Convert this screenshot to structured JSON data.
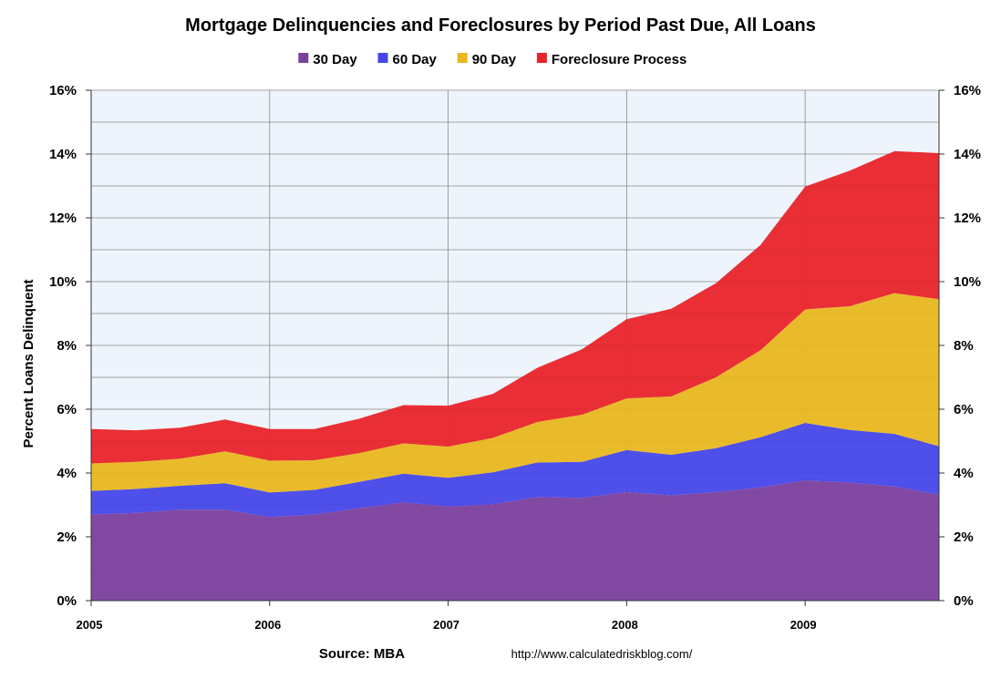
{
  "chart_data": {
    "type": "area",
    "stacked": true,
    "title": "Mortgage Delinquencies and Foreclosures by Period Past Due, All Loans",
    "ylabel": "Percent Loans Delinquent",
    "xlabel": "",
    "ylim": [
      0,
      16
    ],
    "yticks": [
      "0%",
      "2%",
      "4%",
      "6%",
      "8%",
      "10%",
      "12%",
      "14%",
      "16%"
    ],
    "ytick_values": [
      0,
      2,
      4,
      6,
      8,
      10,
      12,
      14,
      16
    ],
    "secondary_y_axis": true,
    "xlim": [
      2005,
      2009.75
    ],
    "xticks": [
      "2005",
      "2006",
      "2007",
      "2008",
      "2009"
    ],
    "xtick_values": [
      2005,
      2006,
      2007,
      2008,
      2009
    ],
    "grid": true,
    "legend_position": "top",
    "x": [
      2005.0,
      2005.25,
      2005.5,
      2005.75,
      2006.0,
      2006.25,
      2006.5,
      2006.75,
      2007.0,
      2007.25,
      2007.5,
      2007.75,
      2008.0,
      2008.25,
      2008.5,
      2008.75,
      2009.0,
      2009.25,
      2009.5,
      2009.75
    ],
    "series": [
      {
        "name": "30 Day",
        "color": "#7b3f9e",
        "values": [
          2.7,
          2.75,
          2.85,
          2.85,
          2.62,
          2.7,
          2.9,
          3.08,
          2.95,
          3.02,
          3.25,
          3.22,
          3.4,
          3.3,
          3.4,
          3.55,
          3.77,
          3.7,
          3.58,
          3.32
        ]
      },
      {
        "name": "60 Day",
        "color": "#4646e8",
        "values": [
          0.74,
          0.75,
          0.75,
          0.83,
          0.77,
          0.77,
          0.82,
          0.9,
          0.9,
          1.0,
          1.08,
          1.13,
          1.32,
          1.27,
          1.38,
          1.57,
          1.8,
          1.65,
          1.65,
          1.52
        ]
      },
      {
        "name": "90 Day",
        "color": "#e8b720",
        "values": [
          0.86,
          0.85,
          0.85,
          1.0,
          1.0,
          0.93,
          0.9,
          0.95,
          0.98,
          1.08,
          1.27,
          1.48,
          1.62,
          1.83,
          2.22,
          2.73,
          3.56,
          3.88,
          4.41,
          4.61
        ]
      },
      {
        "name": "Foreclosure Process",
        "color": "#e8242a",
        "values": [
          1.08,
          0.99,
          0.97,
          1.0,
          0.99,
          0.98,
          1.08,
          1.2,
          1.28,
          1.38,
          1.7,
          2.05,
          2.48,
          2.75,
          2.95,
          3.3,
          3.85,
          4.25,
          4.45,
          4.58
        ]
      }
    ]
  },
  "legend": {
    "items": [
      {
        "label": "30 Day",
        "color": "#7b3f9e"
      },
      {
        "label": "60 Day",
        "color": "#4646e8"
      },
      {
        "label": "90 Day",
        "color": "#e8b720"
      },
      {
        "label": "Foreclosure Process",
        "color": "#e8242a"
      }
    ]
  },
  "footer": {
    "source": "Source: MBA",
    "url": "http://www.calculatedriskblog.com/"
  },
  "colors": {
    "plot_background": "#eef4fb",
    "gridline": "#8a8a8a"
  }
}
